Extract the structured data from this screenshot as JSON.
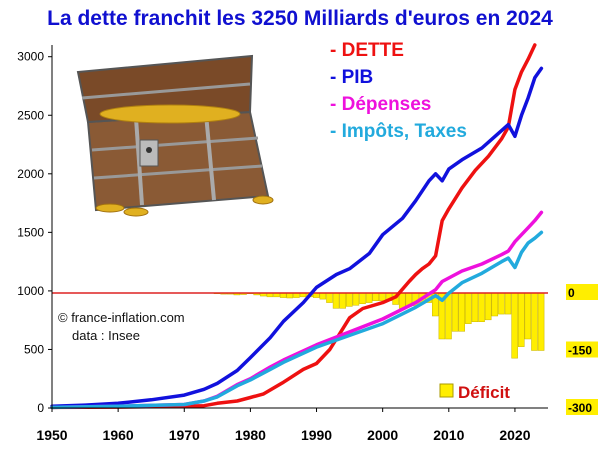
{
  "chart_data": {
    "type": "line",
    "title": "La dette franchit les 3250 Milliards d'euros en 2024",
    "xlabel": "",
    "ylabel": "",
    "x_ticks": [
      "1950",
      "1960",
      "1970",
      "1980",
      "1990",
      "2000",
      "2010",
      "2020"
    ],
    "y_ticks": [
      "0",
      "500",
      "1000",
      "1500",
      "2000",
      "2500",
      "3000"
    ],
    "xlim": [
      1950,
      2025
    ],
    "ylim": [
      0,
      3100
    ],
    "grid": false,
    "legend_position": "top-right",
    "series": [
      {
        "name": "DETTE",
        "label": "- DETTE",
        "color": "#ee1111",
        "x": [
          1950,
          1960,
          1970,
          1973,
          1975,
          1978,
          1980,
          1982,
          1985,
          1988,
          1990,
          1992,
          1994,
          1995,
          1997,
          2000,
          2002,
          2004,
          2005,
          2006,
          2007,
          2008,
          2009,
          2010,
          2012,
          2014,
          2016,
          2018,
          2019,
          2020,
          2021,
          2022,
          2023
        ],
        "y": [
          5,
          8,
          15,
          20,
          40,
          60,
          90,
          120,
          220,
          330,
          380,
          500,
          680,
          770,
          850,
          900,
          950,
          1080,
          1140,
          1190,
          1230,
          1300,
          1600,
          1700,
          1880,
          2030,
          2150,
          2300,
          2400,
          2720,
          2870,
          2980,
          3100
        ]
      },
      {
        "name": "PIB",
        "label": "- PIB",
        "color": "#1111dd",
        "x": [
          1950,
          1955,
          1960,
          1965,
          1970,
          1973,
          1975,
          1978,
          1980,
          1983,
          1985,
          1988,
          1990,
          1993,
          1995,
          1998,
          2000,
          2003,
          2005,
          2007,
          2008,
          2009,
          2010,
          2012,
          2015,
          2017,
          2019,
          2020,
          2021,
          2022,
          2023,
          2024
        ],
        "y": [
          15,
          25,
          40,
          70,
          110,
          160,
          210,
          320,
          430,
          600,
          740,
          900,
          1030,
          1140,
          1190,
          1320,
          1480,
          1620,
          1770,
          1940,
          2000,
          1940,
          2040,
          2120,
          2220,
          2320,
          2420,
          2320,
          2500,
          2650,
          2820,
          2900
        ]
      },
      {
        "name": "Dépenses",
        "label": "- Dépenses",
        "color": "#ee11dd",
        "x": [
          1950,
          1960,
          1970,
          1973,
          1975,
          1978,
          1980,
          1983,
          1985,
          1990,
          1995,
          2000,
          2005,
          2008,
          2009,
          2010,
          2012,
          2015,
          2018,
          2019,
          2020,
          2021,
          2022,
          2023,
          2024
        ],
        "y": [
          5,
          15,
          30,
          60,
          100,
          200,
          250,
          350,
          410,
          540,
          650,
          760,
          900,
          1010,
          1080,
          1110,
          1170,
          1230,
          1310,
          1340,
          1420,
          1480,
          1540,
          1600,
          1670
        ]
      },
      {
        "name": "Impôts, Taxes",
        "label": "- Impôts, Taxes",
        "color": "#22aadd",
        "x": [
          1950,
          1960,
          1970,
          1973,
          1975,
          1978,
          1980,
          1983,
          1985,
          1990,
          1995,
          2000,
          2005,
          2008,
          2009,
          2010,
          2012,
          2015,
          2018,
          2019,
          2020,
          2021,
          2022,
          2023,
          2024
        ],
        "y": [
          5,
          15,
          30,
          60,
          95,
          190,
          240,
          330,
          390,
          520,
          620,
          720,
          860,
          960,
          920,
          980,
          1070,
          1150,
          1250,
          1280,
          1200,
          1330,
          1410,
          1450,
          1500
        ]
      }
    ],
    "deficit": {
      "name": "Déficit",
      "color": "#ffee00",
      "right_axis_ticks": [
        "0",
        "-150",
        "-300"
      ],
      "right_axis_range": [
        -300,
        0
      ],
      "years": [
        1950,
        1951,
        1952,
        1953,
        1954,
        1955,
        1956,
        1957,
        1958,
        1959,
        1960,
        1961,
        1962,
        1963,
        1964,
        1965,
        1966,
        1967,
        1968,
        1969,
        1970,
        1971,
        1972,
        1973,
        1974,
        1975,
        1976,
        1977,
        1978,
        1979,
        1980,
        1981,
        1982,
        1983,
        1984,
        1985,
        1986,
        1987,
        1988,
        1989,
        1990,
        1991,
        1992,
        1993,
        1994,
        1995,
        1996,
        1997,
        1998,
        1999,
        2000,
        2001,
        2002,
        2003,
        2004,
        2005,
        2006,
        2007,
        2008,
        2009,
        2010,
        2011,
        2012,
        2013,
        2014,
        2015,
        2016,
        2017,
        2018,
        2019,
        2020,
        2021,
        2022,
        2023,
        2024
      ],
      "values": [
        0,
        0,
        0,
        0,
        0,
        0,
        0,
        0,
        0,
        0,
        0,
        0,
        0,
        0,
        0,
        0,
        0,
        0,
        0,
        0,
        0,
        0,
        0,
        0,
        0,
        -2,
        -3,
        -3,
        -5,
        -4,
        -2,
        -5,
        -8,
        -10,
        -10,
        -12,
        -13,
        -12,
        -10,
        -10,
        -12,
        -16,
        -25,
        -40,
        -40,
        -35,
        -32,
        -28,
        -25,
        -20,
        -20,
        -20,
        -30,
        -40,
        -35,
        -33,
        -25,
        -25,
        -60,
        -120,
        -120,
        -100,
        -100,
        -80,
        -75,
        -75,
        -70,
        -60,
        -55,
        -55,
        -170,
        -140,
        -120,
        -150,
        -150
      ]
    }
  },
  "credit": {
    "line1": "© france-inflation.com",
    "line2": "data : Insee"
  },
  "legend": {
    "deficit_label": "Déficit"
  }
}
